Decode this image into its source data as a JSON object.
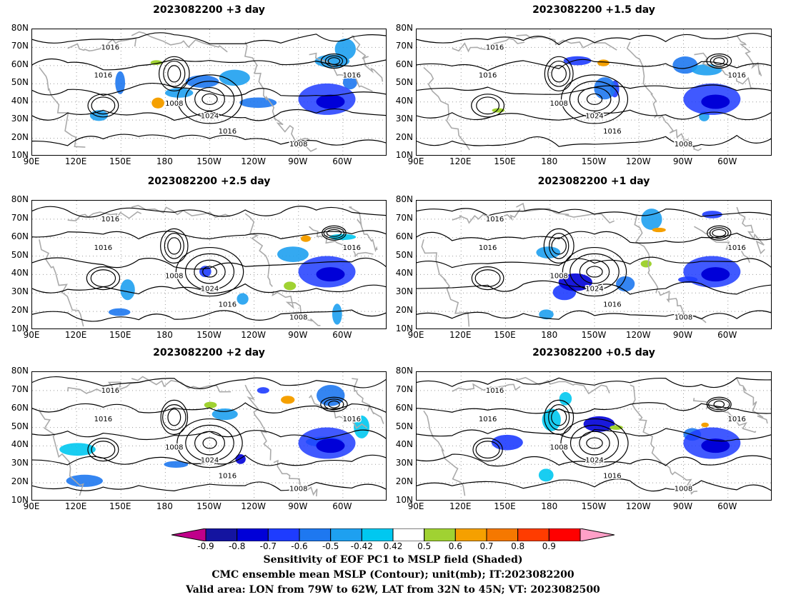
{
  "panels": [
    {
      "title": "2023082200  +3 day"
    },
    {
      "title": "2023082200  +1.5 day"
    },
    {
      "title": "2023082200  +2.5 day"
    },
    {
      "title": "2023082200  +1 day"
    },
    {
      "title": "2023082200  +2 day"
    },
    {
      "title": "2023082200  +0.5 day"
    }
  ],
  "axes": {
    "lat_labels": [
      "80N",
      "70N",
      "60N",
      "50N",
      "40N",
      "30N",
      "20N",
      "10N"
    ],
    "lon_labels": [
      "90E",
      "120E",
      "150E",
      "180",
      "150W",
      "120W",
      "90W",
      "60W"
    ]
  },
  "contour_labels": [
    "1016",
    "1008",
    "1024"
  ],
  "colorbar": {
    "labels": [
      "-0.9",
      "-0.8",
      "-0.7",
      "-0.6",
      "-0.5",
      "-0.42",
      "0.42",
      "0.5",
      "0.6",
      "0.7",
      "0.8",
      "0.9"
    ],
    "colors": [
      "#c0008a",
      "#1414a0",
      "#0000d8",
      "#1e3cff",
      "#1e78f0",
      "#1ea0f0",
      "#00c8f0",
      "#ffffff",
      "#a0d232",
      "#f5a000",
      "#f57800",
      "#ff3c00",
      "#ff0000",
      "#ffa0c8"
    ]
  },
  "caption": {
    "line1": "Sensitivity of EOF PC1 to MSLP field (Shaded)",
    "line2": "CMC ensemble mean MSLP (Contour); unit(mb); IT:2023082200",
    "line3": "Valid area: LON from 79W to 62W, LAT from 32N to 45N; VT: 2023082500"
  }
}
